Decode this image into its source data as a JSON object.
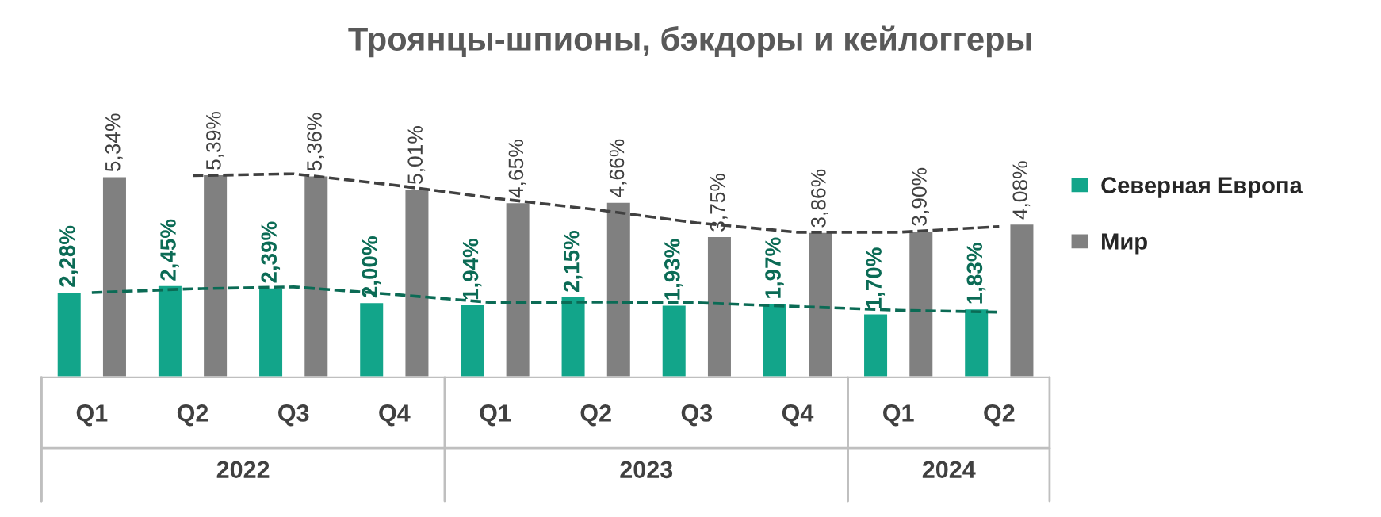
{
  "chart_data": {
    "type": "bar",
    "title": "Троянцы-шпионы, бэкдоры и кейлоггеры",
    "categories": [
      "Q1",
      "Q2",
      "Q3",
      "Q4",
      "Q1",
      "Q2",
      "Q3",
      "Q4",
      "Q1",
      "Q2"
    ],
    "series": [
      {
        "name": "Северная Европа",
        "color": "#12a58a",
        "values": [
          2.28,
          2.45,
          2.39,
          2.0,
          1.94,
          2.15,
          1.93,
          1.97,
          1.7,
          1.83
        ],
        "value_labels": [
          "2,28%",
          "2,45%",
          "2,39%",
          "2,00%",
          "1,94%",
          "2,15%",
          "1,93%",
          "1,97%",
          "1,70%",
          "1,83%"
        ]
      },
      {
        "name": "Мир",
        "color": "#808080",
        "values": [
          5.34,
          5.39,
          5.36,
          5.01,
          4.65,
          4.66,
          3.75,
          3.86,
          3.9,
          4.08
        ],
        "value_labels": [
          "5,34%",
          "5,39%",
          "5,36%",
          "5,01%",
          "4,65%",
          "4,66%",
          "3,75%",
          "3,86%",
          "3,90%",
          "4,08%"
        ]
      },
      {
        "type": "line",
        "color": "#0b6b55",
        "line_style": "dashed",
        "values": [
          2.25,
          2.35,
          2.4,
          2.2,
          1.98,
          2.0,
          1.98,
          1.88,
          1.78,
          1.73
        ]
      },
      {
        "type": "line",
        "color": "#404040",
        "line_style": "dashed",
        "values": [
          null,
          5.35,
          5.4,
          5.1,
          4.75,
          4.45,
          4.1,
          3.85,
          3.85,
          4.0
        ]
      }
    ],
    "legend": "right",
    "grid": false,
    "annotations": [
      "2022",
      "2023",
      "2024"
    ]
  }
}
